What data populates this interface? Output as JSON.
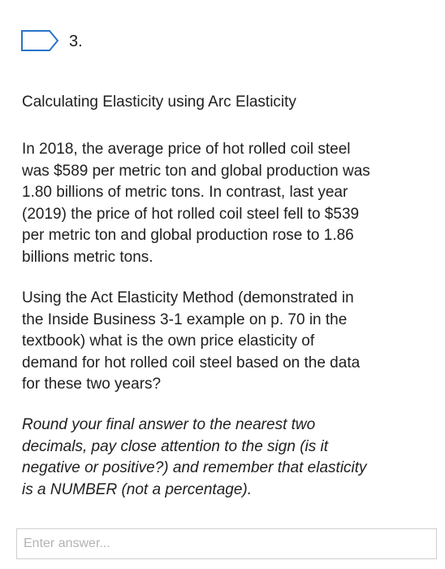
{
  "question": {
    "number": "3.",
    "heading": "Calculating Elasticity using Arc Elasticity",
    "paragraphs": [
      {
        "lines": [
          "In 2018, the average price of hot rolled coil steel",
          "was $589 per metric ton and global production was",
          "1.80 billions of metric tons.  In contrast, last year",
          "(2019) the price of hot rolled coil steel fell to $539",
          "per metric ton and global production rose to 1.86",
          "billions metric tons."
        ]
      },
      {
        "lines": [
          "Using the Act Elasticity Method (demonstrated in",
          "the Inside Business 3-1 example on p. 70 in the",
          "textbook) what is the own price elasticity of",
          "demand for hot rolled coil steel based on the data",
          "for these two years?"
        ]
      },
      {
        "lines": [
          "Round your final answer to the nearest two",
          "decimals, pay close attention to the sign (is it",
          "negative or positive?) and remember that elasticity",
          "is a NUMBER (not a percentage)."
        ]
      }
    ],
    "answer_placeholder": "Enter answer..."
  }
}
